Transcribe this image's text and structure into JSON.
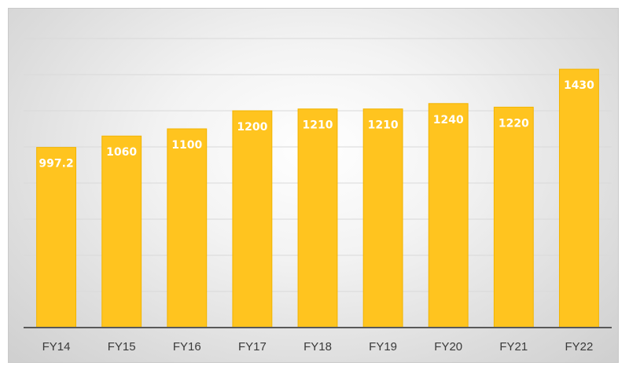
{
  "chart_data": {
    "type": "bar",
    "categories": [
      "FY14",
      "FY15",
      "FY16",
      "FY17",
      "FY18",
      "FY19",
      "FY20",
      "FY21",
      "FY22"
    ],
    "values": [
      997.2,
      1060,
      1100,
      1200,
      1210,
      1210,
      1240,
      1220,
      1430
    ],
    "data_labels": [
      "997.2",
      "1060",
      "1100",
      "1200",
      "1210",
      "1210",
      "1240",
      "1220",
      "1430"
    ],
    "title": "",
    "xlabel": "",
    "ylabel": "",
    "ylim": [
      0,
      1700
    ],
    "grid": true,
    "legend": "none",
    "colors": {
      "bar": "#FFC41F",
      "bar_edge": "#F2B400",
      "gridline": "#d9d9d9",
      "axis": "#595959",
      "data_label": "#FFFFFF"
    }
  }
}
